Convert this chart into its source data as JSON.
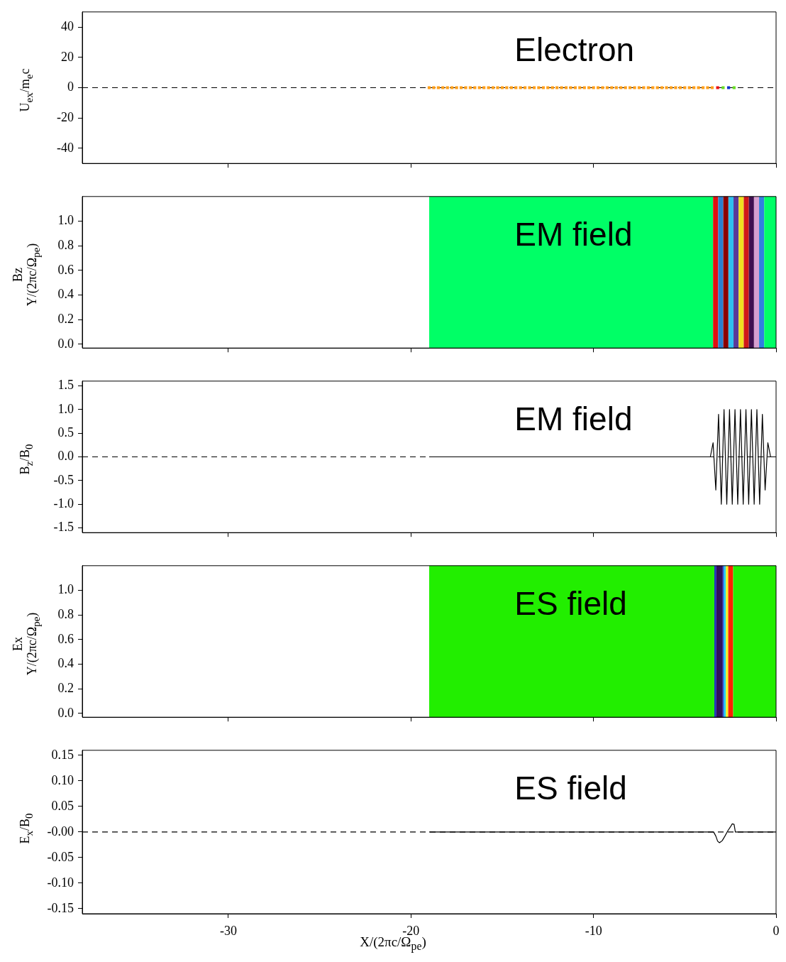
{
  "chart_data": [
    {
      "type": "scatter",
      "title": "Electron",
      "ylabel": "U$_{ex}$/m$_{e}$c",
      "xlim": [
        -38,
        0
      ],
      "xticks": [
        -30,
        -20,
        -10,
        0
      ],
      "ylim": [
        -50,
        50
      ],
      "yticks": [
        -40,
        -20,
        0,
        20,
        40
      ],
      "tick_labels": "y",
      "marker": "square",
      "ref_lines": [
        {
          "axis": "y",
          "value": 0,
          "line_style": "dashed",
          "color": "#000000"
        }
      ],
      "series": [
        {
          "color": "#ff9f1a",
          "x": [
            -19,
            -18.75,
            -18.5,
            -18.25,
            -18,
            -17.75,
            -17.5,
            -17.25,
            -17,
            -16.75,
            -16.5,
            -16.25,
            -16,
            -15.75,
            -15.5,
            -15.25,
            -15,
            -14.75,
            -14.5,
            -14.25,
            -14,
            -13.75,
            -13.5,
            -13.25,
            -13,
            -12.75,
            -12.5,
            -12.25,
            -12,
            -11.75,
            -11.5,
            -11.25,
            -11,
            -10.75,
            -10.5,
            -10.25,
            -10,
            -9.75,
            -9.5,
            -9.25,
            -9,
            -8.75,
            -8.5,
            -8.25,
            -8,
            -7.75,
            -7.5,
            -7.25,
            -7,
            -6.75,
            -6.5,
            -6.25,
            -6,
            -5.75,
            -5.5,
            -5.25,
            -5,
            -4.75,
            -4.5,
            -4.25,
            -4,
            -3.75,
            -3.5
          ],
          "values": [
            0,
            0,
            0,
            0,
            0,
            0,
            0,
            0,
            0,
            0,
            0,
            0,
            0,
            0,
            0,
            0,
            0,
            0,
            0,
            0,
            0,
            0,
            0,
            0,
            0,
            0,
            0,
            0,
            0,
            0,
            0,
            0,
            0,
            0,
            0,
            0,
            0,
            0,
            0,
            0,
            0,
            0,
            0,
            0,
            0,
            0,
            0,
            0,
            0,
            0,
            0,
            0,
            0,
            0,
            0,
            0,
            0,
            0,
            0,
            0,
            0,
            0,
            0
          ]
        },
        {
          "color": "#ee1111",
          "x": [
            -3.2
          ],
          "values": [
            0
          ]
        },
        {
          "color": "#66dd22",
          "x": [
            -2.9,
            -2.3
          ],
          "values": [
            0,
            0
          ]
        },
        {
          "color": "#1133cc",
          "x": [
            -2.6
          ],
          "values": [
            0
          ]
        }
      ]
    },
    {
      "type": "line",
      "title": "EM field",
      "ylabel": "Bz\nY/(2πc/Ω$_{pe}$)",
      "xlim": [
        -38,
        0
      ],
      "xticks": [
        -30,
        -20,
        -10,
        0
      ],
      "ylim": [
        -0.03,
        1.2
      ],
      "yticks": [
        {
          "value": 0,
          "label": "0.0"
        },
        0.2,
        0.4,
        0.6,
        0.8,
        {
          "value": 1,
          "label": "1.0"
        }
      ],
      "tick_labels": "y",
      "bands": [
        {
          "axis": "x",
          "from": -19,
          "to": -3.45,
          "color": "#00ff66"
        },
        {
          "axis": "x",
          "from": -3.45,
          "to": -3.17,
          "color": "#e01010"
        },
        {
          "axis": "x",
          "from": -3.17,
          "to": -2.89,
          "color": "#2a7fd0"
        },
        {
          "axis": "x",
          "from": -2.89,
          "to": -2.61,
          "color": "#8b0000"
        },
        {
          "axis": "x",
          "from": -2.61,
          "to": -2.33,
          "color": "#30c0f0"
        },
        {
          "axis": "x",
          "from": -2.33,
          "to": -2.05,
          "color": "#5a3a9a"
        },
        {
          "axis": "x",
          "from": -2.05,
          "to": -1.77,
          "color": "#f0e020"
        },
        {
          "axis": "x",
          "from": -1.77,
          "to": -1.49,
          "color": "#d01818"
        },
        {
          "axis": "x",
          "from": -1.49,
          "to": -1.21,
          "color": "#401050"
        },
        {
          "axis": "x",
          "from": -1.21,
          "to": -0.93,
          "color": "#d8a0d0"
        },
        {
          "axis": "x",
          "from": -0.93,
          "to": -0.65,
          "color": "#3080e0"
        },
        {
          "axis": "x",
          "from": -0.65,
          "to": 0,
          "color": "#00ff66"
        }
      ]
    },
    {
      "type": "line",
      "title": "EM field",
      "ylabel": "B$_{z}$/B$_{0}$",
      "xlim": [
        -38,
        0
      ],
      "xticks": [
        -30,
        -20,
        -10,
        0
      ],
      "ylim": [
        -1.6,
        1.6
      ],
      "yticks": [
        1.5,
        {
          "value": 1,
          "label": "1.0"
        },
        0.5,
        {
          "value": 0,
          "label": "0.0"
        },
        -0.5,
        {
          "value": -1,
          "label": "-1.0"
        },
        -1.5
      ],
      "tick_labels": "y",
      "ref_lines": [
        {
          "axis": "y",
          "value": 0,
          "line_style": "dashed",
          "color": "#000000"
        }
      ],
      "series": [
        {
          "color": "#000000",
          "x": [
            -19,
            -3.6,
            -3.45,
            -3.3,
            -3.15,
            -3,
            -2.85,
            -2.7,
            -2.55,
            -2.4,
            -2.25,
            -2.1,
            -1.95,
            -1.8,
            -1.65,
            -1.5,
            -1.35,
            -1.2,
            -1.05,
            -0.9,
            -0.75,
            -0.6,
            -0.45,
            -0.3,
            0
          ],
          "values": [
            0,
            0,
            0.3,
            -0.7,
            0.9,
            -1,
            1,
            -1,
            1,
            -1,
            1,
            -1,
            1,
            -1,
            1,
            -1,
            1,
            -1,
            1,
            -1,
            0.9,
            -0.7,
            0.3,
            0,
            0
          ]
        }
      ]
    },
    {
      "type": "line",
      "title": "ES field",
      "ylabel": "Ex\nY/(2πc/Ω$_{pe}$)",
      "xlim": [
        -38,
        0
      ],
      "xticks": [
        -30,
        -20,
        -10,
        0
      ],
      "ylim": [
        -0.03,
        1.2
      ],
      "yticks": [
        {
          "value": 0,
          "label": "0.0"
        },
        0.2,
        0.4,
        0.6,
        0.8,
        {
          "value": 1,
          "label": "1.0"
        }
      ],
      "tick_labels": "y",
      "bands": [
        {
          "axis": "x",
          "from": -19,
          "to": -3.38,
          "color": "#22ee00"
        },
        {
          "axis": "x",
          "from": -3.38,
          "to": -3.27,
          "color": "#2030c0"
        },
        {
          "axis": "x",
          "from": -3.27,
          "to": -2.92,
          "color": "#30105a"
        },
        {
          "axis": "x",
          "from": -2.92,
          "to": -2.85,
          "color": "#2050e0"
        },
        {
          "axis": "x",
          "from": -2.85,
          "to": -2.75,
          "color": "#20d0f0"
        },
        {
          "axis": "x",
          "from": -2.75,
          "to": -2.62,
          "color": "#f0f020"
        },
        {
          "axis": "x",
          "from": -2.62,
          "to": -2.35,
          "color": "#ff2000"
        },
        {
          "axis": "x",
          "from": -2.35,
          "to": 0,
          "color": "#22ee00"
        }
      ]
    },
    {
      "type": "line",
      "title": "ES field",
      "ylabel": "E$_{x}$/B$_{0}$",
      "xlabel": "X/(2πc/Ω$_{pe}$)",
      "xlim": [
        -38,
        0
      ],
      "xticks": [
        -30,
        -20,
        -10,
        0
      ],
      "ylim": [
        -0.16,
        0.16
      ],
      "yticks": [
        0.15,
        {
          "value": 0.1,
          "label": "0.10"
        },
        0.05,
        {
          "value": 0,
          "label": "-0.00"
        },
        -0.05,
        {
          "value": -0.1,
          "label": "-0.10"
        },
        -0.15
      ],
      "ref_lines": [
        {
          "axis": "y",
          "value": 0,
          "line_style": "dashed",
          "color": "#000000"
        }
      ],
      "series": [
        {
          "color": "#000000",
          "x": [
            -19,
            -3.42,
            -3.3,
            -3.2,
            -3.1,
            -2.95,
            -2.8,
            -2.65,
            -2.5,
            -2.4,
            -2.3,
            -2.23,
            0
          ],
          "values": [
            0,
            0,
            -0.008,
            -0.018,
            -0.021,
            -0.017,
            -0.008,
            0.002,
            0.01,
            0.016,
            0.015,
            0,
            0
          ]
        }
      ]
    }
  ]
}
